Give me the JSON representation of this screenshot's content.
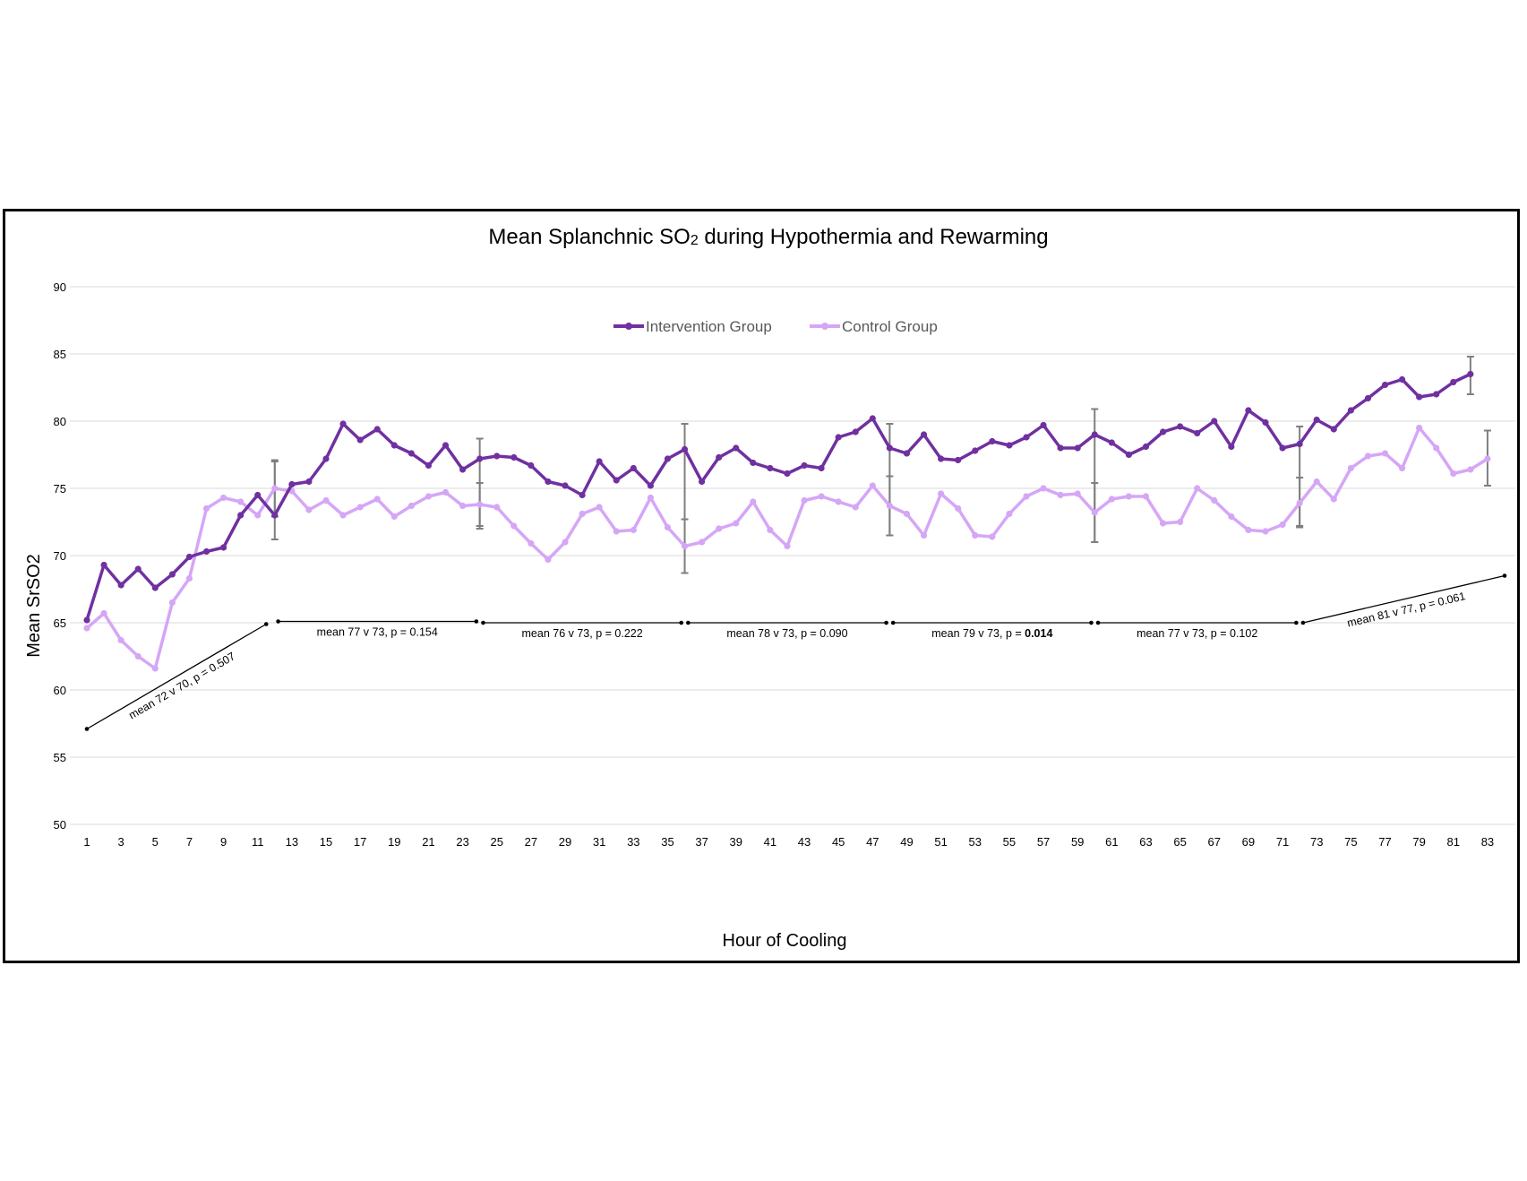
{
  "chart_data": {
    "type": "line",
    "title_main": "Mean Splanchnic SO",
    "title_sub": "2",
    "title_rest": " during Hypothermia and Rewarming",
    "xlabel": "Hour of Cooling",
    "ylabel": "Mean SrSO2",
    "ylim": [
      50,
      90
    ],
    "yticks": [
      50,
      55,
      60,
      65,
      70,
      75,
      80,
      85,
      90
    ],
    "xlim": [
      1,
      83
    ],
    "xticks": [
      1,
      3,
      5,
      7,
      9,
      11,
      13,
      15,
      17,
      19,
      21,
      23,
      25,
      27,
      29,
      31,
      33,
      35,
      37,
      39,
      41,
      43,
      45,
      47,
      49,
      51,
      53,
      55,
      57,
      59,
      61,
      63,
      65,
      67,
      69,
      71,
      73,
      75,
      77,
      79,
      81,
      83
    ],
    "grid": "horizontal",
    "legend_position": "top-center",
    "series": [
      {
        "name": "Intervention Group",
        "color": "#7030a0",
        "x": [
          1,
          2,
          3,
          4,
          5,
          6,
          7,
          8,
          9,
          10,
          11,
          12,
          13,
          14,
          15,
          16,
          17,
          18,
          19,
          20,
          21,
          22,
          23,
          24,
          25,
          26,
          27,
          28,
          29,
          30,
          31,
          32,
          33,
          34,
          35,
          36,
          37,
          38,
          39,
          40,
          41,
          42,
          43,
          44,
          45,
          46,
          47,
          48,
          49,
          50,
          51,
          52,
          53,
          54,
          55,
          56,
          57,
          58,
          59,
          60,
          61,
          62,
          63,
          64,
          65,
          66,
          67,
          68,
          69,
          70,
          71,
          72,
          73,
          74,
          75,
          76,
          77,
          78,
          79,
          80,
          81,
          82
        ],
        "values": [
          65.2,
          69.3,
          67.8,
          69.0,
          67.6,
          68.6,
          69.9,
          70.3,
          70.6,
          73.0,
          74.5,
          73.0,
          75.3,
          75.5,
          77.2,
          79.8,
          78.6,
          79.4,
          78.2,
          77.6,
          76.7,
          78.2,
          76.4,
          77.2,
          77.4,
          77.3,
          76.7,
          75.5,
          75.2,
          74.5,
          77.0,
          75.6,
          76.5,
          75.2,
          77.2,
          77.9,
          75.5,
          77.3,
          78.0,
          76.9,
          76.5,
          76.1,
          76.7,
          76.5,
          78.8,
          79.2,
          80.2,
          78.0,
          77.6,
          79.0,
          77.2,
          77.1,
          77.8,
          78.5,
          78.2,
          78.8,
          79.7,
          78.0,
          78.0,
          79.0,
          78.4,
          77.5,
          78.1,
          79.2,
          79.6,
          79.1,
          80.0,
          78.1,
          80.8,
          79.9,
          78.0,
          78.3,
          80.1,
          79.4,
          80.8,
          81.7,
          82.7,
          83.1,
          81.8,
          82.0,
          82.9,
          83.5
        ],
        "error_bars": [
          {
            "x": 12,
            "low": 71.2,
            "high": 77.1
          },
          {
            "x": 24,
            "low": 72.2,
            "high": 78.7
          },
          {
            "x": 36,
            "low": 68.7,
            "high": 79.8
          },
          {
            "x": 48,
            "low": 71.5,
            "high": 79.8
          },
          {
            "x": 60,
            "low": 71.0,
            "high": 80.9
          },
          {
            "x": 72,
            "low": 72.2,
            "high": 79.6
          },
          {
            "x": 82,
            "low": 82.0,
            "high": 84.8
          }
        ]
      },
      {
        "name": "Control Group",
        "color": "#d5a6f6",
        "x": [
          1,
          2,
          3,
          4,
          5,
          6,
          7,
          8,
          9,
          10,
          11,
          12,
          13,
          14,
          15,
          16,
          17,
          18,
          19,
          20,
          21,
          22,
          23,
          24,
          25,
          26,
          27,
          28,
          29,
          30,
          31,
          32,
          33,
          34,
          35,
          36,
          37,
          38,
          39,
          40,
          41,
          42,
          43,
          44,
          45,
          46,
          47,
          48,
          49,
          50,
          51,
          52,
          53,
          54,
          55,
          56,
          57,
          58,
          59,
          60,
          61,
          62,
          63,
          64,
          65,
          66,
          67,
          68,
          69,
          70,
          71,
          72,
          73,
          74,
          75,
          76,
          77,
          78,
          79,
          80,
          81,
          82,
          83
        ],
        "values": [
          64.6,
          65.7,
          63.7,
          62.5,
          61.6,
          66.5,
          68.3,
          73.5,
          74.3,
          74.0,
          73.0,
          75.0,
          74.8,
          73.4,
          74.1,
          73.0,
          73.6,
          74.2,
          72.9,
          73.7,
          74.4,
          74.7,
          73.7,
          73.8,
          73.6,
          72.2,
          70.9,
          69.7,
          71.0,
          73.1,
          73.6,
          71.8,
          71.9,
          74.3,
          72.1,
          70.7,
          71.0,
          72.0,
          72.4,
          74.0,
          71.9,
          70.7,
          74.1,
          74.4,
          74.0,
          73.6,
          75.2,
          73.7,
          73.1,
          71.5,
          74.6,
          73.5,
          71.5,
          71.4,
          73.1,
          74.4,
          75.0,
          74.5,
          74.6,
          73.2,
          74.2,
          74.4,
          74.4,
          72.4,
          72.5,
          75.0,
          74.1,
          72.9,
          71.9,
          71.8,
          72.3,
          73.9,
          75.5,
          74.2,
          76.5,
          77.4,
          77.6,
          76.5,
          79.5,
          78.0,
          76.1,
          76.4,
          77.2
        ],
        "error_bars": [
          {
            "x": 12,
            "low": 72.9,
            "high": 77.0
          },
          {
            "x": 24,
            "low": 72.0,
            "high": 75.4
          },
          {
            "x": 36,
            "low": 68.7,
            "high": 72.7
          },
          {
            "x": 48,
            "low": 71.5,
            "high": 75.9
          },
          {
            "x": 60,
            "low": 71.0,
            "high": 75.4
          },
          {
            "x": 72,
            "low": 72.1,
            "high": 75.8
          },
          {
            "x": 83,
            "low": 75.2,
            "high": 79.3
          }
        ]
      }
    ],
    "annotations": [
      {
        "x1": 1,
        "y1": 57.1,
        "x2": 11.5,
        "y2": 64.9,
        "text": "mean 72 v 70, p = 0.507",
        "bold": ""
      },
      {
        "x1": 12.2,
        "y1": 65.1,
        "x2": 23.8,
        "y2": 65.1,
        "text": "mean 77 v 73, p = 0.154",
        "bold": ""
      },
      {
        "x1": 24.2,
        "y1": 65.0,
        "x2": 35.8,
        "y2": 65.0,
        "text": "mean 76 v 73, p = 0.222",
        "bold": ""
      },
      {
        "x1": 36.2,
        "y1": 65.0,
        "x2": 47.8,
        "y2": 65.0,
        "text": "mean 78 v 73, p = 0.090",
        "bold": ""
      },
      {
        "x1": 48.2,
        "y1": 65.0,
        "x2": 59.8,
        "y2": 65.0,
        "text": "mean 79 v 73, p = ",
        "bold": "0.014"
      },
      {
        "x1": 60.2,
        "y1": 65.0,
        "x2": 71.8,
        "y2": 65.0,
        "text": "mean 77 v 73, p = 0.102",
        "bold": ""
      },
      {
        "x1": 72.2,
        "y1": 65.0,
        "x2": 84.0,
        "y2": 68.5,
        "text": "mean 81 v 77, p = 0.061",
        "bold": ""
      }
    ]
  }
}
